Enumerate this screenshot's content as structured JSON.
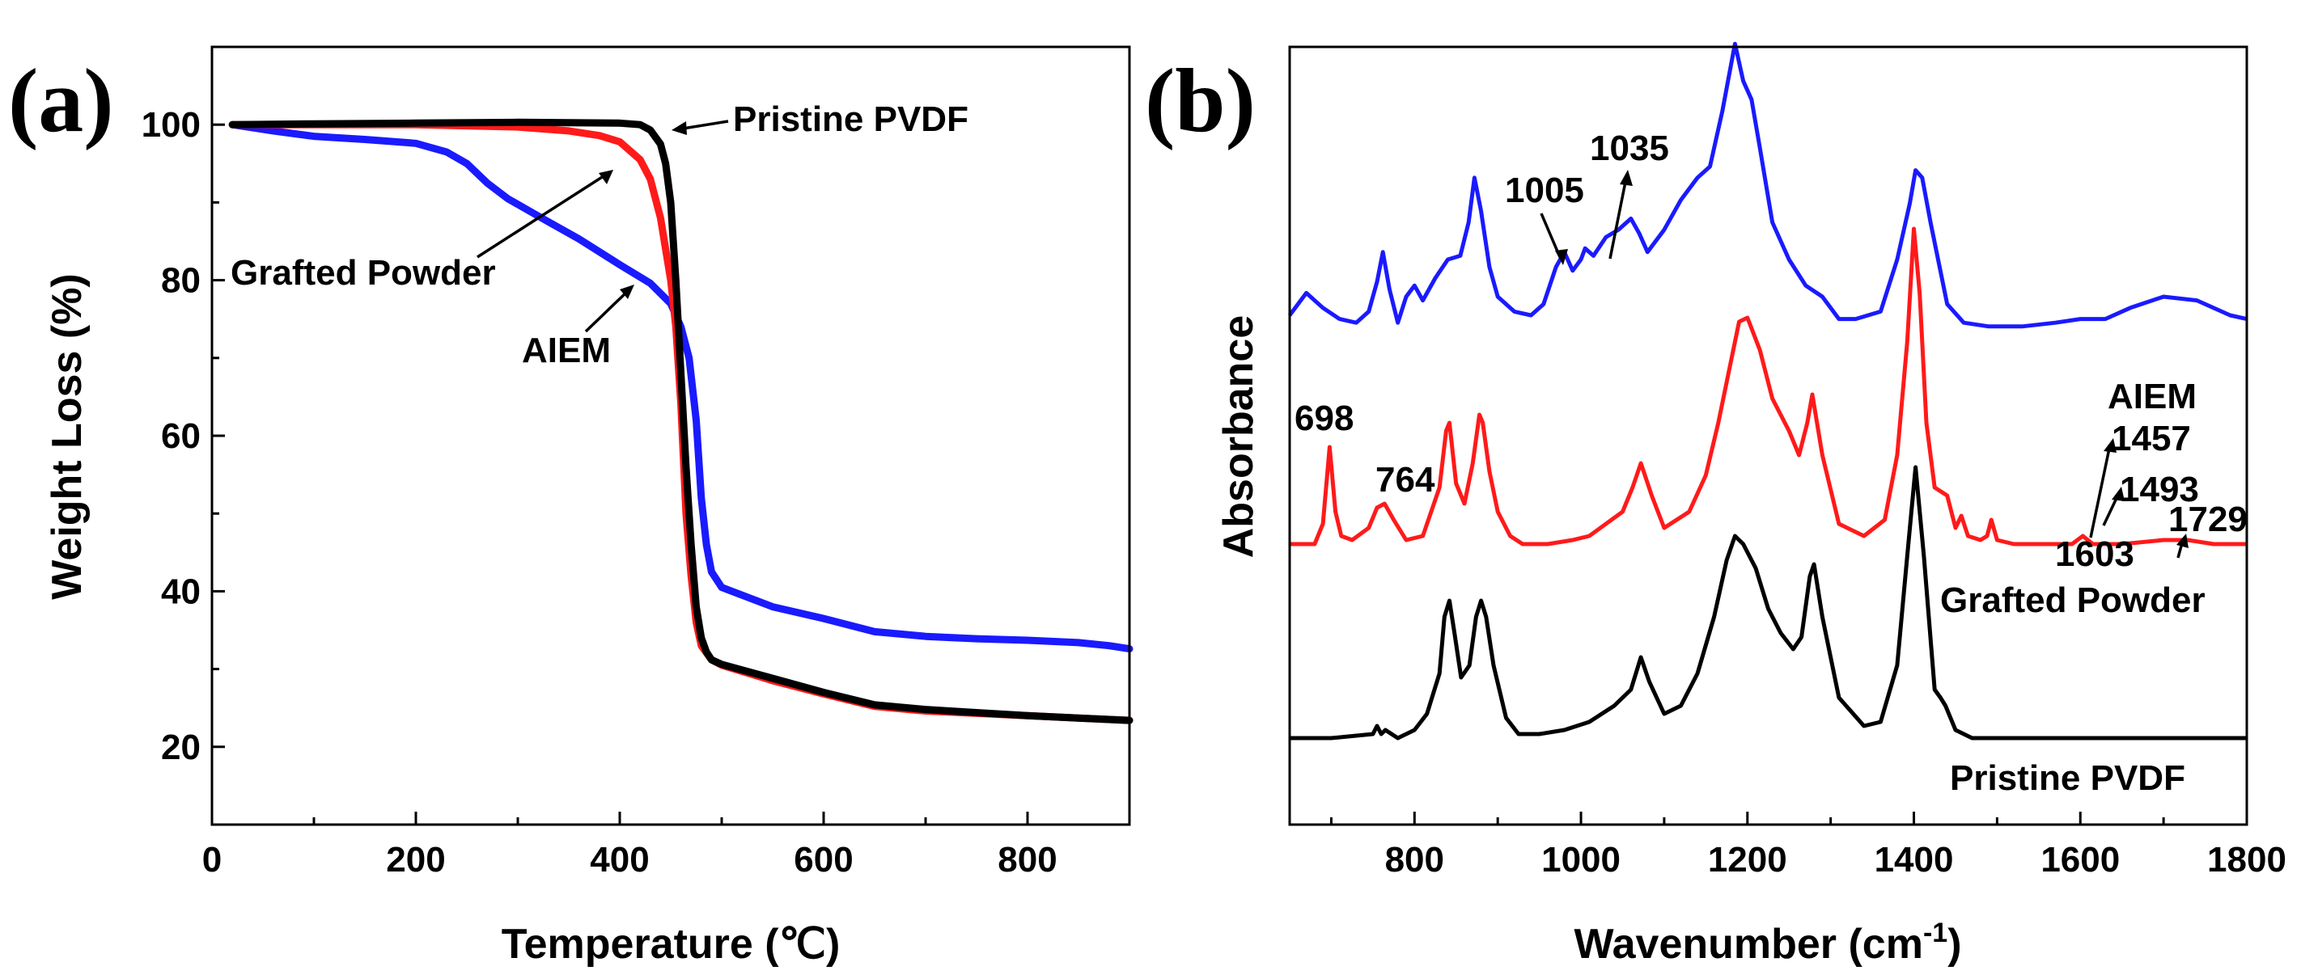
{
  "figure": {
    "panel_a_label": "(a)",
    "panel_b_label": "(b)"
  },
  "chart_data": [
    {
      "type": "line",
      "panel": "(a)",
      "title": "",
      "xlabel": "Temperature (℃)",
      "ylabel": "Weight Loss (%)",
      "xlim": [
        0,
        900
      ],
      "ylim": [
        10,
        110
      ],
      "xticks": [
        0,
        200,
        400,
        600,
        800
      ],
      "yticks": [
        20,
        40,
        60,
        80,
        100
      ],
      "grid": false,
      "series": [
        {
          "name": "AIEM",
          "color": "#1a1aff",
          "x": [
            20,
            60,
            100,
            150,
            200,
            230,
            250,
            270,
            290,
            310,
            330,
            360,
            400,
            430,
            450,
            460,
            468,
            475,
            480,
            485,
            490,
            500,
            520,
            550,
            600,
            650,
            700,
            750,
            800,
            850,
            880,
            900
          ],
          "y": [
            100,
            99.2,
            98.5,
            98.1,
            97.6,
            96.5,
            95,
            92.5,
            90.5,
            89,
            87.5,
            85.3,
            82,
            79.6,
            77,
            74,
            70,
            62,
            52,
            46,
            42.5,
            40.5,
            39.5,
            38,
            36.5,
            34.8,
            34.2,
            33.9,
            33.7,
            33.4,
            33,
            32.6
          ]
        },
        {
          "name": "Grafted Powder",
          "color": "#ff1a1a",
          "x": [
            20,
            100,
            200,
            300,
            350,
            380,
            400,
            420,
            430,
            440,
            450,
            455,
            460,
            465,
            470,
            475,
            480,
            490,
            500,
            550,
            600,
            650,
            700,
            750,
            800,
            850,
            900
          ],
          "y": [
            100,
            100,
            100,
            99.7,
            99.2,
            98.6,
            97.8,
            95.5,
            93,
            88,
            80,
            74,
            64,
            50,
            42,
            36,
            33,
            31.2,
            30.5,
            28.5,
            26.8,
            25.2,
            24.6,
            24.3,
            24,
            23.7,
            23.4
          ]
        },
        {
          "name": "Pristine PVDF",
          "color": "#000000",
          "x": [
            20,
            100,
            200,
            300,
            400,
            420,
            430,
            440,
            445,
            450,
            455,
            460,
            465,
            470,
            475,
            480,
            485,
            490,
            500,
            550,
            600,
            650,
            700,
            750,
            800,
            850,
            900
          ],
          "y": [
            100,
            100.1,
            100.2,
            100.3,
            100.2,
            100,
            99.3,
            97.5,
            95,
            90,
            80,
            68,
            56,
            46,
            38,
            34,
            32.2,
            31.2,
            30.6,
            28.8,
            27,
            25.4,
            24.8,
            24.4,
            24,
            23.7,
            23.4
          ]
        }
      ],
      "annotations": [
        {
          "text": "Pristine PVDF",
          "points_to": "Pristine PVDF"
        },
        {
          "text": "Grafted Powder",
          "points_to": "Grafted Powder"
        },
        {
          "text": "AIEM",
          "points_to": "AIEM"
        }
      ]
    },
    {
      "type": "line",
      "panel": "(b)",
      "title": "",
      "xlabel": "Wavenumber (cm",
      "xlabel_superscript": "-1",
      "xlabel_suffix": ")",
      "ylabel": "Absorbance",
      "xlim": [
        650,
        1800
      ],
      "xticks": [
        800,
        1000,
        1200,
        1400,
        1600,
        1800
      ],
      "yticks": [],
      "grid": false,
      "series": [
        {
          "name": "AIEM",
          "color": "#1a1aff",
          "x": [
            650,
            670,
            690,
            710,
            730,
            745,
            755,
            762,
            770,
            780,
            790,
            800,
            810,
            825,
            840,
            855,
            865,
            872,
            880,
            890,
            900,
            920,
            940,
            955,
            970,
            980,
            990,
            1000,
            1005,
            1015,
            1030,
            1045,
            1060,
            1070,
            1080,
            1100,
            1120,
            1140,
            1155,
            1170,
            1180,
            1185,
            1195,
            1205,
            1215,
            1230,
            1250,
            1270,
            1290,
            1310,
            1330,
            1360,
            1380,
            1395,
            1402,
            1410,
            1420,
            1440,
            1460,
            1490,
            1530,
            1570,
            1600,
            1630,
            1660,
            1700,
            1740,
            1780,
            1800
          ],
          "y": [
            0.05,
            0.11,
            0.07,
            0.04,
            0.03,
            0.06,
            0.14,
            0.22,
            0.12,
            0.03,
            0.1,
            0.13,
            0.09,
            0.15,
            0.2,
            0.21,
            0.3,
            0.42,
            0.33,
            0.18,
            0.1,
            0.06,
            0.05,
            0.08,
            0.18,
            0.22,
            0.17,
            0.2,
            0.23,
            0.21,
            0.26,
            0.28,
            0.31,
            0.27,
            0.22,
            0.28,
            0.36,
            0.42,
            0.45,
            0.6,
            0.72,
            0.78,
            0.68,
            0.63,
            0.5,
            0.3,
            0.2,
            0.13,
            0.1,
            0.04,
            0.04,
            0.06,
            0.2,
            0.35,
            0.44,
            0.42,
            0.3,
            0.08,
            0.03,
            0.02,
            0.02,
            0.03,
            0.04,
            0.04,
            0.07,
            0.1,
            0.09,
            0.05,
            0.04
          ]
        },
        {
          "name": "Grafted Powder",
          "color": "#ff1a1a",
          "x": [
            650,
            680,
            690,
            698,
            705,
            712,
            725,
            745,
            755,
            764,
            775,
            790,
            810,
            830,
            838,
            842,
            850,
            860,
            870,
            878,
            882,
            890,
            900,
            915,
            930,
            960,
            990,
            1010,
            1030,
            1050,
            1062,
            1072,
            1085,
            1100,
            1130,
            1150,
            1165,
            1180,
            1190,
            1200,
            1215,
            1230,
            1250,
            1262,
            1272,
            1278,
            1290,
            1310,
            1340,
            1365,
            1380,
            1392,
            1400,
            1407,
            1415,
            1425,
            1440,
            1450,
            1457,
            1465,
            1480,
            1488,
            1493,
            1500,
            1520,
            1560,
            1590,
            1603,
            1615,
            1650,
            1700,
            1729,
            1760,
            1800
          ],
          "y": [
            0.0,
            0.0,
            0.05,
            0.24,
            0.08,
            0.02,
            0.01,
            0.04,
            0.09,
            0.1,
            0.06,
            0.01,
            0.02,
            0.14,
            0.28,
            0.3,
            0.15,
            0.1,
            0.2,
            0.32,
            0.3,
            0.18,
            0.08,
            0.02,
            0.0,
            0.0,
            0.01,
            0.02,
            0.05,
            0.08,
            0.14,
            0.2,
            0.12,
            0.04,
            0.08,
            0.17,
            0.3,
            0.45,
            0.55,
            0.56,
            0.48,
            0.36,
            0.28,
            0.22,
            0.3,
            0.37,
            0.22,
            0.05,
            0.02,
            0.06,
            0.22,
            0.5,
            0.78,
            0.62,
            0.3,
            0.14,
            0.12,
            0.04,
            0.07,
            0.02,
            0.01,
            0.02,
            0.06,
            0.01,
            0.0,
            0.0,
            0.0,
            0.02,
            0.0,
            0.0,
            0.01,
            0.01,
            0.0,
            0.0
          ]
        },
        {
          "name": "Pristine PVDF",
          "color": "#000000",
          "x": [
            650,
            700,
            750,
            755,
            760,
            765,
            780,
            800,
            815,
            830,
            836,
            842,
            848,
            856,
            866,
            874,
            880,
            886,
            895,
            910,
            925,
            950,
            980,
            1010,
            1040,
            1060,
            1072,
            1082,
            1100,
            1120,
            1140,
            1160,
            1175,
            1185,
            1195,
            1210,
            1225,
            1240,
            1255,
            1265,
            1275,
            1280,
            1290,
            1310,
            1340,
            1360,
            1380,
            1392,
            1402,
            1412,
            1425,
            1432,
            1438,
            1450,
            1470,
            1500,
            1550,
            1600,
            1650,
            1700,
            1750,
            1800
          ],
          "y": [
            0.0,
            0.0,
            0.01,
            0.03,
            0.01,
            0.02,
            0.0,
            0.02,
            0.06,
            0.16,
            0.3,
            0.34,
            0.26,
            0.15,
            0.18,
            0.3,
            0.34,
            0.3,
            0.18,
            0.05,
            0.01,
            0.01,
            0.02,
            0.04,
            0.08,
            0.12,
            0.2,
            0.14,
            0.06,
            0.08,
            0.16,
            0.3,
            0.44,
            0.5,
            0.48,
            0.42,
            0.32,
            0.26,
            0.22,
            0.25,
            0.4,
            0.43,
            0.3,
            0.1,
            0.03,
            0.04,
            0.18,
            0.45,
            0.67,
            0.45,
            0.12,
            0.1,
            0.08,
            0.02,
            0.0,
            0.0,
            0.0,
            0.0,
            0.0,
            0.0,
            0.0,
            0.0
          ]
        }
      ],
      "legend": [
        "AIEM",
        "Grafted Powder",
        "Pristine PVDF"
      ],
      "annotations": [
        {
          "text": "1005",
          "series": "AIEM",
          "x": 1005
        },
        {
          "text": "1035",
          "series": "AIEM",
          "x": 1035
        },
        {
          "text": "698",
          "series": "Grafted Powder",
          "x": 698
        },
        {
          "text": "764",
          "series": "Grafted Powder",
          "x": 764
        },
        {
          "text": "1457",
          "series": "Grafted Powder",
          "x": 1457
        },
        {
          "text": "1493",
          "series": "Grafted Powder",
          "x": 1493
        },
        {
          "text": "1603",
          "series": "Grafted Powder",
          "x": 1603
        },
        {
          "text": "1729",
          "series": "Grafted Powder",
          "x": 1729
        }
      ]
    }
  ]
}
